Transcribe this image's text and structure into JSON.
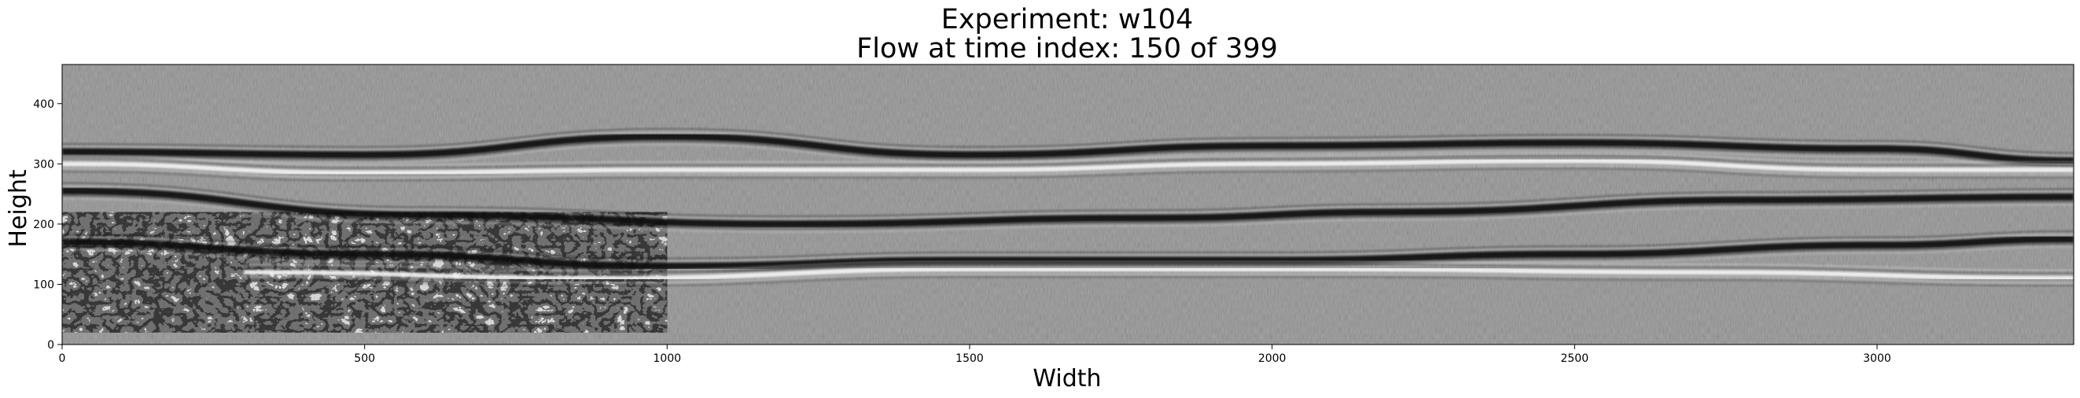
{
  "chart_data": {
    "type": "heatmap",
    "colormap": "gray",
    "title_lines": [
      "Experiment: w104",
      "Flow at time index: 150 of 399"
    ],
    "xlabel": "Width",
    "ylabel": "Height",
    "xlim": [
      0,
      3325
    ],
    "ylim": [
      0,
      465
    ],
    "xticks": [
      0,
      500,
      1000,
      1500,
      2000,
      2500,
      3000
    ],
    "yticks": [
      0,
      100,
      200,
      300,
      400
    ],
    "grid": false,
    "legend": "none",
    "colors": {
      "background_gray": "#8c8c8c",
      "band_dark": "#0a0a0a",
      "band_light": "#f4f4f4"
    },
    "features": [
      {
        "name": "upper-dark-band",
        "points": [
          [
            0,
            320
          ],
          [
            500,
            315
          ],
          [
            1000,
            345
          ],
          [
            1500,
            315
          ],
          [
            2000,
            330
          ],
          [
            2500,
            335
          ],
          [
            3000,
            325
          ],
          [
            3325,
            305
          ]
        ]
      },
      {
        "name": "upper-light-band",
        "points": [
          [
            0,
            300
          ],
          [
            500,
            285
          ],
          [
            1000,
            290
          ],
          [
            1500,
            290
          ],
          [
            2000,
            300
          ],
          [
            2500,
            305
          ],
          [
            3000,
            290
          ],
          [
            3325,
            290
          ]
        ]
      },
      {
        "name": "middle-dark-band",
        "points": [
          [
            0,
            255
          ],
          [
            600,
            215
          ],
          [
            1200,
            200
          ],
          [
            1800,
            210
          ],
          [
            2200,
            220
          ],
          [
            2800,
            240
          ],
          [
            3325,
            245
          ]
        ]
      },
      {
        "name": "lower-dark-band",
        "points": [
          [
            0,
            170
          ],
          [
            500,
            150
          ],
          [
            1000,
            130
          ],
          [
            1500,
            140
          ],
          [
            2000,
            140
          ],
          [
            2500,
            150
          ],
          [
            3000,
            165
          ],
          [
            3325,
            175
          ]
        ]
      },
      {
        "name": "lower-light-band",
        "points": [
          [
            300,
            120
          ],
          [
            900,
            110
          ],
          [
            1500,
            125
          ],
          [
            2100,
            125
          ],
          [
            2700,
            120
          ],
          [
            3325,
            110
          ]
        ]
      }
    ],
    "turbulent_region": {
      "x": [
        0,
        1000
      ],
      "y": [
        20,
        220
      ]
    }
  }
}
